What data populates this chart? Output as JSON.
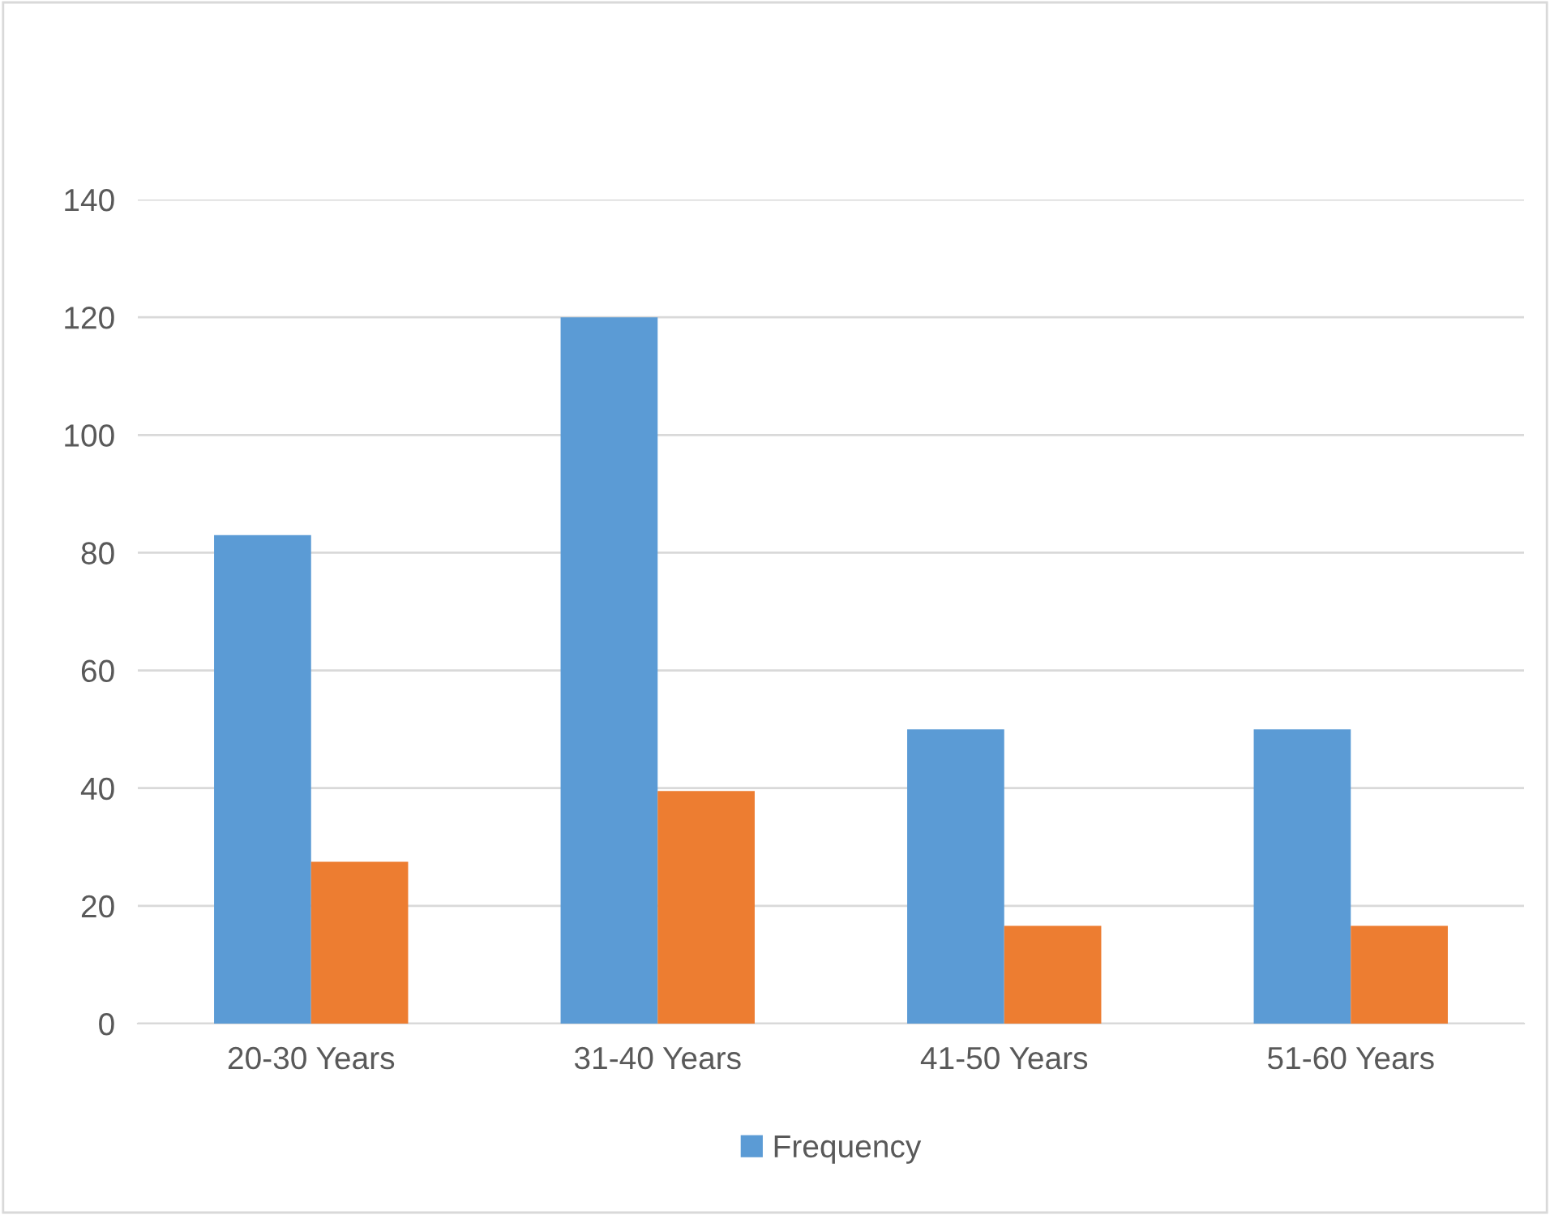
{
  "chart_data": {
    "type": "bar",
    "categories": [
      "20-30 Years",
      "31-40 Years",
      "41-50 Years",
      "51-60 Years"
    ],
    "series": [
      {
        "name": "Frequency",
        "color": "#5b9bd5",
        "values": [
          83,
          120,
          50,
          50
        ]
      },
      {
        "color": "#ed7d31",
        "values": [
          27.5,
          39.5,
          16.6,
          16.6
        ]
      }
    ],
    "ylim": [
      0,
      140
    ],
    "yticks": [
      0,
      20,
      40,
      60,
      80,
      100,
      120,
      140
    ],
    "grid": "y",
    "legend": "bottom"
  }
}
